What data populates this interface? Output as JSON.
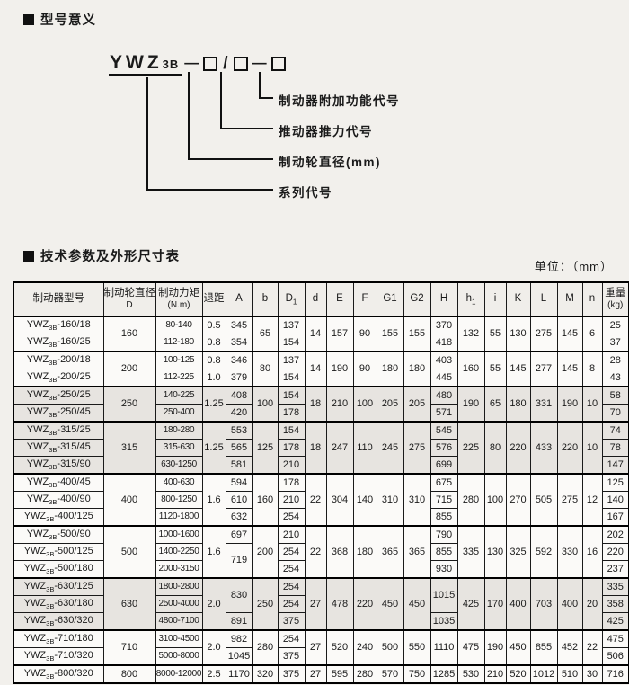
{
  "sections": {
    "model_meaning_title": "型号意义",
    "tech_params_title": "技术参数及外形尺寸表"
  },
  "diagram": {
    "series_text": "YWZ",
    "series_sub": "3B",
    "code_separator_1": "—",
    "code_separator_2": "/",
    "code_separator_3": "—",
    "labels": {
      "additional_function": "制动器附加功能代号",
      "thrust_code": "推动器推力代号",
      "wheel_diameter": "制动轮直径(mm)",
      "series_code": "系列代号"
    }
  },
  "table": {
    "unit_label": "单位：（mm）",
    "model_prefix": "YWZ",
    "model_sub": "3B",
    "headers": [
      {
        "key": "model",
        "lines": [
          "制动器型号"
        ]
      },
      {
        "key": "wheel-diameter",
        "lines": [
          "制动轮直径",
          "D"
        ]
      },
      {
        "key": "torque",
        "lines": [
          "制动力矩",
          "(N.m)"
        ]
      },
      {
        "key": "retreat",
        "lines": [
          "退距"
        ]
      },
      {
        "key": "A",
        "lines": [
          "A"
        ]
      },
      {
        "key": "b",
        "lines": [
          "b"
        ]
      },
      {
        "key": "D1",
        "lines": [
          "D"
        ],
        "sub": "1"
      },
      {
        "key": "d",
        "lines": [
          "d"
        ]
      },
      {
        "key": "E",
        "lines": [
          "E"
        ]
      },
      {
        "key": "F",
        "lines": [
          "F"
        ]
      },
      {
        "key": "G1",
        "lines": [
          "G1"
        ]
      },
      {
        "key": "G2",
        "lines": [
          "G2"
        ]
      },
      {
        "key": "H",
        "lines": [
          "H"
        ]
      },
      {
        "key": "h1",
        "lines": [
          "h"
        ],
        "sub": "1"
      },
      {
        "key": "i",
        "lines": [
          "i"
        ]
      },
      {
        "key": "K",
        "lines": [
          "K"
        ]
      },
      {
        "key": "L",
        "lines": [
          "L"
        ]
      },
      {
        "key": "M",
        "lines": [
          "M"
        ]
      },
      {
        "key": "n",
        "lines": [
          "n"
        ]
      },
      {
        "key": "weight",
        "lines": [
          "重量",
          "(kg)"
        ]
      }
    ],
    "groups": [
      {
        "shaded": false,
        "shared": {
          "D": "160",
          "b": "65",
          "d": "14",
          "E": "157",
          "F": "90",
          "G1": "155",
          "G2": "155",
          "h1": "132",
          "i": "55",
          "K": "130",
          "L": "275",
          "M": "145",
          "n": "6"
        },
        "tuiju": [
          {
            "v": "0.5",
            "span": 1
          },
          {
            "v": "0.8",
            "span": 1
          }
        ],
        "A": [
          {
            "v": "345",
            "span": 1
          },
          {
            "v": "354",
            "span": 1
          }
        ],
        "H": [
          {
            "v": "370",
            "span": 1
          },
          {
            "v": "418",
            "span": 1
          }
        ],
        "rows": [
          {
            "suffix": "-160/18",
            "torque": "80-140",
            "D1": "137",
            "weight": "25"
          },
          {
            "suffix": "-160/25",
            "torque": "112-180",
            "D1": "154",
            "weight": "37"
          }
        ]
      },
      {
        "shaded": false,
        "shared": {
          "D": "200",
          "b": "80",
          "d": "14",
          "E": "190",
          "F": "90",
          "G1": "180",
          "G2": "180",
          "h1": "160",
          "i": "55",
          "K": "145",
          "L": "277",
          "M": "145",
          "n": "8"
        },
        "tuiju": [
          {
            "v": "0.8",
            "span": 1
          },
          {
            "v": "1.0",
            "span": 1
          }
        ],
        "A": [
          {
            "v": "346",
            "span": 1
          },
          {
            "v": "379",
            "span": 1
          }
        ],
        "H": [
          {
            "v": "403",
            "span": 1
          },
          {
            "v": "445",
            "span": 1
          }
        ],
        "rows": [
          {
            "suffix": "-200/18",
            "torque": "100-125",
            "D1": "137",
            "weight": "28"
          },
          {
            "suffix": "-200/25",
            "torque": "112-225",
            "D1": "154",
            "weight": "43"
          }
        ]
      },
      {
        "shaded": true,
        "shared": {
          "D": "250",
          "b": "100",
          "d": "18",
          "E": "210",
          "F": "100",
          "G1": "205",
          "G2": "205",
          "h1": "190",
          "i": "65",
          "K": "180",
          "L": "331",
          "M": "190",
          "n": "10"
        },
        "tuiju": [
          {
            "v": "1.25",
            "span": 2
          }
        ],
        "A": [
          {
            "v": "408",
            "span": 1
          },
          {
            "v": "420",
            "span": 1
          }
        ],
        "H": [
          {
            "v": "480",
            "span": 1
          },
          {
            "v": "571",
            "span": 1
          }
        ],
        "rows": [
          {
            "suffix": "-250/25",
            "torque": "140-225",
            "D1": "154",
            "weight": "58"
          },
          {
            "suffix": "-250/45",
            "torque": "250-400",
            "D1": "178",
            "weight": "70"
          }
        ]
      },
      {
        "shaded": true,
        "shared": {
          "D": "315",
          "b": "125",
          "d": "18",
          "E": "247",
          "F": "110",
          "G1": "245",
          "G2": "275",
          "h1": "225",
          "i": "80",
          "K": "220",
          "L": "433",
          "M": "220",
          "n": "10"
        },
        "tuiju": [
          {
            "v": "1.25",
            "span": 3
          }
        ],
        "A": [
          {
            "v": "553",
            "span": 1
          },
          {
            "v": "565",
            "span": 1
          },
          {
            "v": "581",
            "span": 1
          }
        ],
        "H": [
          {
            "v": "545",
            "span": 1
          },
          {
            "v": "576",
            "span": 1
          },
          {
            "v": "699",
            "span": 1
          }
        ],
        "rows": [
          {
            "suffix": "-315/25",
            "torque": "180-280",
            "D1": "154",
            "weight": "74"
          },
          {
            "suffix": "-315/45",
            "torque": "315-630",
            "D1": "178",
            "weight": "78"
          },
          {
            "suffix": "-315/90",
            "torque": "630-1250",
            "D1": "210",
            "weight": "147"
          }
        ]
      },
      {
        "shaded": false,
        "shared": {
          "D": "400",
          "b": "160",
          "d": "22",
          "E": "304",
          "F": "140",
          "G1": "310",
          "G2": "310",
          "h1": "280",
          "i": "100",
          "K": "270",
          "L": "505",
          "M": "275",
          "n": "12"
        },
        "tuiju": [
          {
            "v": "1.6",
            "span": 3
          }
        ],
        "A": [
          {
            "v": "594",
            "span": 1
          },
          {
            "v": "610",
            "span": 1
          },
          {
            "v": "632",
            "span": 1
          }
        ],
        "H": [
          {
            "v": "675",
            "span": 1
          },
          {
            "v": "715",
            "span": 1
          },
          {
            "v": "855",
            "span": 1
          }
        ],
        "rows": [
          {
            "suffix": "-400/45",
            "torque": "400-630",
            "D1": "178",
            "weight": "125"
          },
          {
            "suffix": "-400/90",
            "torque": "800-1250",
            "D1": "210",
            "weight": "140"
          },
          {
            "suffix": "-400/125",
            "torque": "1120-1800",
            "D1": "254",
            "weight": "167"
          }
        ]
      },
      {
        "shaded": false,
        "shared": {
          "D": "500",
          "b": "200",
          "d": "22",
          "E": "368",
          "F": "180",
          "G1": "365",
          "G2": "365",
          "h1": "335",
          "i": "130",
          "K": "325",
          "L": "592",
          "M": "330",
          "n": "16"
        },
        "tuiju": [
          {
            "v": "1.6",
            "span": 3
          }
        ],
        "A": [
          {
            "v": "697",
            "span": 1
          },
          {
            "v": "719",
            "span": 2
          }
        ],
        "H": [
          {
            "v": "790",
            "span": 1
          },
          {
            "v": "855",
            "span": 1
          },
          {
            "v": "930",
            "span": 1
          }
        ],
        "rows": [
          {
            "suffix": "-500/90",
            "torque": "1000-1600",
            "D1": "210",
            "weight": "202"
          },
          {
            "suffix": "-500/125",
            "torque": "1400-2250",
            "D1": "254",
            "weight": "220"
          },
          {
            "suffix": "-500/180",
            "torque": "2000-3150",
            "D1": "254",
            "weight": "237"
          }
        ]
      },
      {
        "shaded": true,
        "shared": {
          "D": "630",
          "b": "250",
          "d": "27",
          "E": "478",
          "F": "220",
          "G1": "450",
          "G2": "450",
          "h1": "425",
          "i": "170",
          "K": "400",
          "L": "703",
          "M": "400",
          "n": "20"
        },
        "tuiju": [
          {
            "v": "2.0",
            "span": 3
          }
        ],
        "A": [
          {
            "v": "830",
            "span": 2
          },
          {
            "v": "891",
            "span": 1
          }
        ],
        "H": [
          {
            "v": "1015",
            "span": 2
          },
          {
            "v": "1035",
            "span": 1
          }
        ],
        "rows": [
          {
            "suffix": "-630/125",
            "torque": "1800-2800",
            "D1": "254",
            "weight": "335"
          },
          {
            "suffix": "-630/180",
            "torque": "2500-4000",
            "D1": "254",
            "weight": "358"
          },
          {
            "suffix": "-630/320",
            "torque": "4800-7100",
            "D1": "375",
            "weight": "425"
          }
        ]
      },
      {
        "shaded": false,
        "shared": {
          "D": "710",
          "b": "280",
          "d": "27",
          "E": "520",
          "F": "240",
          "G1": "500",
          "G2": "550",
          "h1": "475",
          "i": "190",
          "K": "450",
          "L": "855",
          "M": "452",
          "n": "22"
        },
        "tuiju": [
          {
            "v": "2.0",
            "span": 2
          }
        ],
        "A": [
          {
            "v": "982",
            "span": 1
          },
          {
            "v": "1045",
            "span": 1
          }
        ],
        "H": [
          {
            "v": "1110",
            "span": 2
          }
        ],
        "rows": [
          {
            "suffix": "-710/180",
            "torque": "3100-4500",
            "D1": "254",
            "weight": "475"
          },
          {
            "suffix": "-710/320",
            "torque": "5000-8000",
            "D1": "375",
            "weight": "506"
          }
        ]
      },
      {
        "shaded": false,
        "shared": {
          "D": "800",
          "b": "320",
          "d": "27",
          "E": "595",
          "F": "280",
          "G1": "570",
          "G2": "750",
          "h1": "530",
          "i": "210",
          "K": "520",
          "L": "1012",
          "M": "510",
          "n": "30"
        },
        "tuiju": [
          {
            "v": "2.5",
            "span": 1
          }
        ],
        "A": [
          {
            "v": "1170",
            "span": 1
          }
        ],
        "H": [
          {
            "v": "1285",
            "span": 1
          }
        ],
        "rows": [
          {
            "suffix": "-800/320",
            "torque": "8000-12000",
            "D1": "375",
            "weight": "716"
          }
        ]
      }
    ]
  }
}
